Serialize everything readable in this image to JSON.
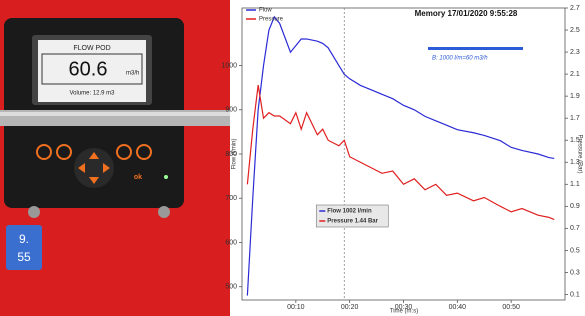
{
  "device": {
    "title": "FLOW POD",
    "reading": "60.6",
    "unit": "m3/h",
    "volume": "Volume: 12.9 m3",
    "button": "ok",
    "sticker": [
      "9.",
      "55"
    ]
  },
  "chart_data": {
    "type": "line",
    "title": "Memory 17/01/2020 9:55:28",
    "annotation": "B: 1000 l/m=60 m3/h",
    "tooltip": [
      "Flow 1002 l/min",
      "Pressure 1.44 Bar"
    ],
    "cursor": 19,
    "x_label": "Time (m:s)",
    "y_label": "Flow (l/min)",
    "y2_label": "Pressure (Bar)",
    "legend": "top-left",
    "grid": false,
    "x": [
      1,
      2,
      3,
      4,
      5,
      6,
      7,
      9,
      10,
      11,
      12,
      14,
      15,
      16,
      18,
      19,
      20,
      22,
      24,
      26,
      28,
      30,
      32,
      34,
      36,
      38,
      40,
      43,
      45,
      48,
      50,
      52,
      55,
      57,
      58
    ],
    "series": [
      {
        "name": "Flow",
        "color": "#2b2bd6",
        "values": [
          480,
          700,
          900,
          1000,
          1080,
          1110,
          1095,
          1030,
          1045,
          1060,
          1060,
          1055,
          1050,
          1040,
          1000,
          980,
          970,
          955,
          945,
          935,
          925,
          910,
          900,
          885,
          875,
          865,
          855,
          848,
          842,
          830,
          815,
          808,
          800,
          792,
          790
        ]
      },
      {
        "name": "Pressure",
        "color": "#e02020",
        "axis": "y2",
        "values": [
          1.1,
          1.6,
          2.0,
          1.7,
          1.75,
          1.72,
          1.72,
          1.65,
          1.75,
          1.6,
          1.75,
          1.55,
          1.6,
          1.5,
          1.45,
          1.5,
          1.35,
          1.3,
          1.25,
          1.2,
          1.22,
          1.1,
          1.15,
          1.05,
          1.1,
          1.0,
          1.02,
          0.95,
          0.98,
          0.9,
          0.85,
          0.88,
          0.82,
          0.8,
          0.78
        ]
      }
    ],
    "xlim": [
      0,
      60
    ],
    "xticks": [
      {
        "value": 10,
        "label": "00:10"
      },
      {
        "value": 20,
        "label": "00:20"
      },
      {
        "value": 30,
        "label": "00:30"
      },
      {
        "value": 40,
        "label": "00:40"
      },
      {
        "value": 50,
        "label": "00:50"
      }
    ],
    "ylim": [
      470,
      1130
    ],
    "yticks": [
      500,
      600,
      700,
      800,
      900,
      1000
    ],
    "y2lim": [
      0.05,
      2.7
    ],
    "y2ticks": [
      0.1,
      0.3,
      0.5,
      0.7,
      0.9,
      1.1,
      1.3,
      1.5,
      1.7,
      1.9,
      2.1,
      2.3,
      2.5,
      2.7
    ]
  }
}
